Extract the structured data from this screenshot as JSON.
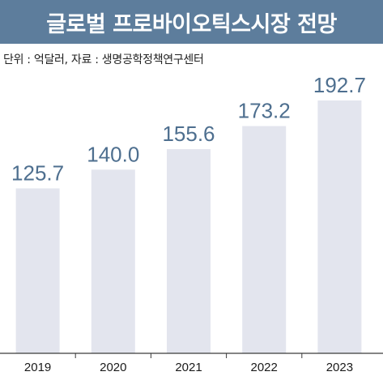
{
  "title": "글로벌 프로바이오틱스시장 전망",
  "unit_note": "단위 : 억달러, 자료 : 생명공학정책연구센터",
  "colors": {
    "header_bg": "#5d7d9c",
    "bar": "#e3e5ee",
    "value_text": "#4e6f8f",
    "axis": "#3a3a3a",
    "tick_text": "#1a1a1a"
  },
  "chart_data": {
    "type": "bar",
    "categories": [
      "2019",
      "2020",
      "2021",
      "2022",
      "2023"
    ],
    "values": [
      125.7,
      140.0,
      155.6,
      173.2,
      192.7
    ],
    "value_labels": [
      "125.7",
      "140.0",
      "155.6",
      "173.2",
      "192.7"
    ],
    "title": "글로벌 프로바이오틱스시장 전망",
    "xlabel": "",
    "ylabel": "",
    "grid": false,
    "legend": "none"
  }
}
